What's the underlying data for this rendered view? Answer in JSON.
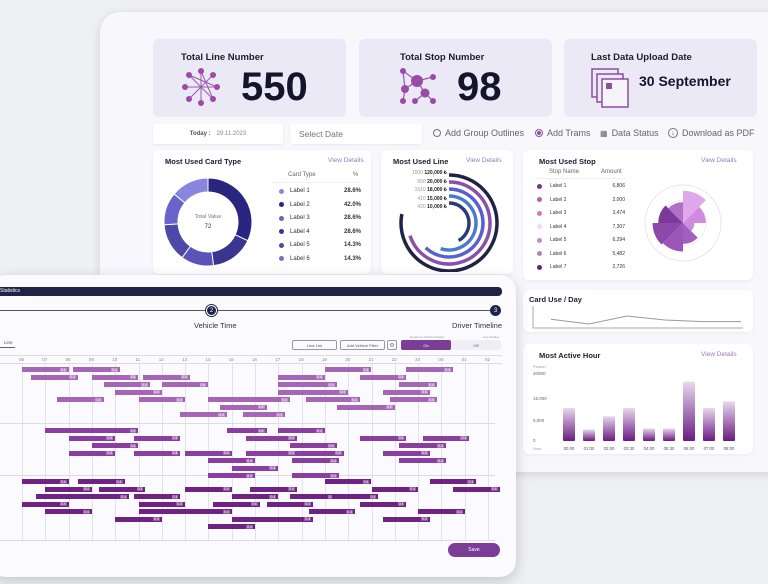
{
  "kpis": {
    "total_line": {
      "title": "Total Line Number",
      "value": "550"
    },
    "total_stop": {
      "title": "Total Stop Number",
      "value": "98"
    },
    "last_upload": {
      "title": "Last Data Upload Date",
      "value": "30 September"
    }
  },
  "toolbar": {
    "today_label": "Today :",
    "today_value": "29.11.2023",
    "date_placeholder": "Select Date",
    "add_group_outlines": "Add Group Outlines",
    "add_trams": "Add Trams",
    "data_status": "Data Status",
    "download_pdf": "Download as PDF"
  },
  "card_type": {
    "title": "Most Used Card Type",
    "view_details": "View Details",
    "center_label": "Total Value",
    "center_value": "72",
    "col_type": "Card Type",
    "col_pct": "%",
    "rows": [
      {
        "label": "Label 1",
        "pct": "28.6%",
        "color": "#8a86e0"
      },
      {
        "label": "Label 2",
        "pct": "42.0%",
        "color": "#2a2680"
      },
      {
        "label": "Label 3",
        "pct": "28.6%",
        "color": "#6a64c8"
      },
      {
        "label": "Label 4",
        "pct": "28.6%",
        "color": "#3a3590"
      },
      {
        "label": "Label 5",
        "pct": "14.3%",
        "color": "#4e48a8"
      },
      {
        "label": "Label 6",
        "pct": "14.3%",
        "color": "#7670d0"
      }
    ]
  },
  "most_used_line": {
    "title": "Most Used Line",
    "view_details": "View Details",
    "rows": [
      {
        "line": "1500",
        "value": "120,000 ₺",
        "color": "#1f2447",
        "frac": 0.78
      },
      {
        "line": "650",
        "value": "20,000 ₺",
        "color": "#8a4fa8",
        "frac": 0.7
      },
      {
        "line": "1510",
        "value": "18,000 ₺",
        "color": "#5a5fd0",
        "frac": 0.62
      },
      {
        "line": "410",
        "value": "15,000 ₺",
        "color": "#4a7ad0",
        "frac": 0.55
      },
      {
        "line": "420",
        "value": "10,000 ₺",
        "color": "#2e3a78",
        "frac": 0.42
      }
    ]
  },
  "most_used_stop": {
    "title": "Most Used Stop",
    "view_details": "View Details",
    "col_name": "Stop Name",
    "col_amount": "Amount",
    "rows": [
      {
        "label": "Label 1",
        "amount": "6,806",
        "color": "#6e3a8e"
      },
      {
        "label": "Label 2",
        "amount": "2,000",
        "color": "#c05fa8"
      },
      {
        "label": "Label 3",
        "amount": "3,474",
        "color": "#d07ab8"
      },
      {
        "label": "Label 4",
        "amount": "7,307",
        "color": "#f0dcef"
      },
      {
        "label": "Label 5",
        "amount": "6,294",
        "color": "#c08ad0"
      },
      {
        "label": "Label 6",
        "amount": "5,482",
        "color": "#a090b0"
      },
      {
        "label": "Label 7",
        "amount": "2,726",
        "color": "#5a2a6e"
      }
    ]
  },
  "card_use_day": {
    "title": "Card Use / Day",
    "values": [
      0.55,
      0.25,
      0.75,
      0.5,
      0.4,
      0.4
    ]
  },
  "most_active_hour": {
    "title": "Most Active Hour",
    "view_details": "View Details",
    "y_unit": "Person",
    "x_unit": "Hour",
    "y_ticks": [
      "20000",
      "15,000",
      "5,000",
      "0"
    ],
    "categories": [
      "00:00",
      "01:00",
      "02:00",
      "03:30",
      "04:00",
      "05:30",
      "06:00",
      "07:00",
      "08:00"
    ],
    "values": [
      10000,
      3500,
      7500,
      10000,
      3800,
      3800,
      18000,
      10000,
      12000
    ]
  },
  "overlay": {
    "header_label": "Statistics",
    "step2_num": "2",
    "step2_label": "Vehicle Time",
    "step3_num": "3",
    "step3_label": "Driver Timeline",
    "tab_line": "Line",
    "btn_line_list": "Line List",
    "btn_vehicle_filter": "Add Vehicle Filter",
    "toggle_label": "Departure Vehicle Display",
    "toggle_label2": "Line Display",
    "toggle_on": "On",
    "toggle_off": "Off",
    "hours": [
      "06",
      "07",
      "08",
      "09",
      "10",
      "11",
      "12",
      "13",
      "14",
      "15",
      "16",
      "17",
      "18",
      "19",
      "20",
      "21",
      "22",
      "23",
      "00",
      "01",
      "02"
    ],
    "save": "Save",
    "bar_tag": "0.4"
  }
}
